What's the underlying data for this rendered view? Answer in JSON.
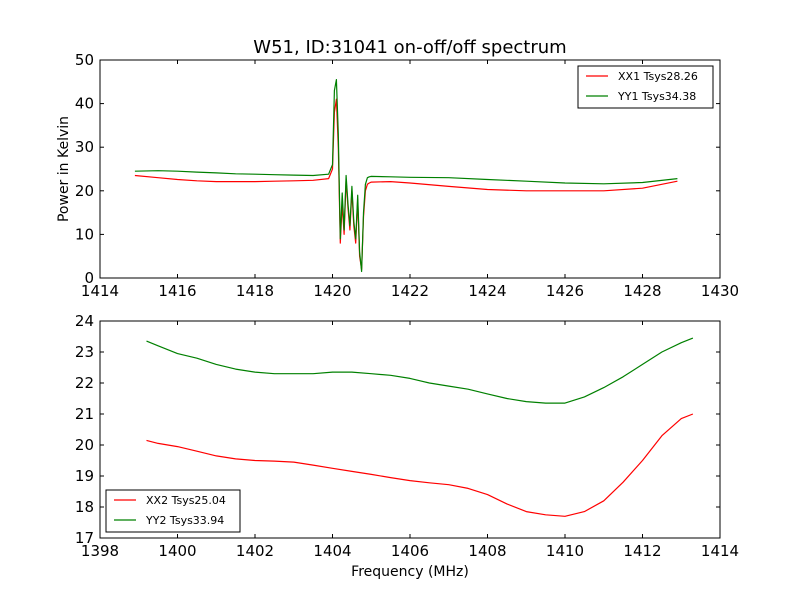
{
  "chart_data": [
    {
      "type": "line",
      "title": "W51, ID:31041 on-off/off spectrum",
      "xlabel": "",
      "ylabel": "Power in Kelvin",
      "xlim": [
        1414,
        1430
      ],
      "ylim": [
        0,
        50
      ],
      "xticks": [
        "1414",
        "1416",
        "1418",
        "1420",
        "1422",
        "1424",
        "1426",
        "1428",
        "1430"
      ],
      "yticks": [
        "0",
        "10",
        "20",
        "30",
        "40",
        "50"
      ],
      "grid": false,
      "legend_position": "top-right",
      "series": [
        {
          "name": "XX1 Tsys28.26",
          "color": "#ff0000",
          "x": [
            1414.9,
            1415.5,
            1416.0,
            1416.5,
            1417.0,
            1417.5,
            1418.0,
            1418.5,
            1419.0,
            1419.5,
            1419.9,
            1420.0,
            1420.05,
            1420.1,
            1420.15,
            1420.2,
            1420.25,
            1420.3,
            1420.35,
            1420.4,
            1420.45,
            1420.5,
            1420.55,
            1420.6,
            1420.65,
            1420.7,
            1420.75,
            1420.8,
            1420.85,
            1420.9,
            1420.95,
            1421.0,
            1421.5,
            1422.0,
            1423.0,
            1424.0,
            1425.0,
            1426.0,
            1427.0,
            1428.0,
            1428.9
          ],
          "y": [
            23.5,
            23.0,
            22.6,
            22.3,
            22.1,
            22.1,
            22.1,
            22.2,
            22.3,
            22.4,
            22.8,
            25.0,
            38.0,
            41.0,
            30.0,
            8.0,
            17.0,
            10.0,
            22.5,
            16.0,
            11.0,
            20.0,
            12.0,
            8.0,
            18.0,
            5.0,
            2.0,
            14.0,
            20.0,
            21.5,
            21.8,
            22.0,
            22.1,
            21.8,
            21.0,
            20.3,
            20.0,
            20.0,
            20.0,
            20.6,
            22.2
          ]
        },
        {
          "name": "YY1 Tsys34.38",
          "color": "#008000",
          "x": [
            1414.9,
            1415.5,
            1416.0,
            1416.5,
            1417.0,
            1417.5,
            1418.0,
            1418.5,
            1419.0,
            1419.5,
            1419.9,
            1420.0,
            1420.05,
            1420.1,
            1420.15,
            1420.2,
            1420.25,
            1420.3,
            1420.35,
            1420.4,
            1420.45,
            1420.5,
            1420.55,
            1420.6,
            1420.65,
            1420.7,
            1420.75,
            1420.8,
            1420.85,
            1420.9,
            1420.95,
            1421.0,
            1421.5,
            1422.0,
            1423.0,
            1424.0,
            1425.0,
            1426.0,
            1427.0,
            1428.0,
            1428.9
          ],
          "y": [
            24.5,
            24.6,
            24.5,
            24.3,
            24.1,
            23.9,
            23.8,
            23.7,
            23.6,
            23.5,
            23.8,
            26.0,
            43.0,
            45.5,
            33.0,
            9.0,
            19.5,
            11.0,
            23.5,
            17.0,
            12.0,
            21.0,
            13.0,
            9.0,
            19.0,
            6.0,
            1.5,
            15.0,
            21.5,
            23.0,
            23.2,
            23.3,
            23.2,
            23.1,
            23.0,
            22.6,
            22.2,
            21.8,
            21.6,
            21.9,
            22.8
          ]
        }
      ]
    },
    {
      "type": "line",
      "title": "",
      "xlabel": "Frequency (MHz)",
      "ylabel": "",
      "xlim": [
        1398,
        1414
      ],
      "ylim": [
        17,
        24
      ],
      "xticks": [
        "1398",
        "1400",
        "1402",
        "1404",
        "1406",
        "1408",
        "1410",
        "1412",
        "1414"
      ],
      "yticks": [
        "17",
        "18",
        "19",
        "20",
        "21",
        "22",
        "23",
        "24"
      ],
      "grid": false,
      "legend_position": "bottom-left",
      "series": [
        {
          "name": "XX2 Tsys25.04",
          "color": "#ff0000",
          "x": [
            1399.2,
            1399.5,
            1400.0,
            1400.5,
            1401.0,
            1401.5,
            1402.0,
            1402.5,
            1403.0,
            1403.5,
            1404.0,
            1404.5,
            1405.0,
            1405.5,
            1406.0,
            1406.5,
            1407.0,
            1407.5,
            1408.0,
            1408.5,
            1409.0,
            1409.5,
            1410.0,
            1410.5,
            1411.0,
            1411.5,
            1412.0,
            1412.5,
            1413.0,
            1413.3
          ],
          "y": [
            20.15,
            20.05,
            19.95,
            19.8,
            19.65,
            19.55,
            19.5,
            19.48,
            19.45,
            19.35,
            19.25,
            19.15,
            19.05,
            18.95,
            18.85,
            18.78,
            18.72,
            18.6,
            18.4,
            18.1,
            17.85,
            17.75,
            17.7,
            17.85,
            18.2,
            18.8,
            19.5,
            20.3,
            20.85,
            21.0
          ]
        },
        {
          "name": "YY2 Tsys33.94",
          "color": "#008000",
          "x": [
            1399.2,
            1399.5,
            1400.0,
            1400.5,
            1401.0,
            1401.5,
            1402.0,
            1402.5,
            1403.0,
            1403.5,
            1404.0,
            1404.5,
            1405.0,
            1405.5,
            1406.0,
            1406.5,
            1407.0,
            1407.5,
            1408.0,
            1408.5,
            1409.0,
            1409.5,
            1410.0,
            1410.5,
            1411.0,
            1411.5,
            1412.0,
            1412.5,
            1413.0,
            1413.3
          ],
          "y": [
            23.35,
            23.2,
            22.95,
            22.8,
            22.6,
            22.45,
            22.35,
            22.3,
            22.3,
            22.3,
            22.35,
            22.35,
            22.3,
            22.25,
            22.15,
            22.0,
            21.9,
            21.8,
            21.65,
            21.5,
            21.4,
            21.35,
            21.35,
            21.55,
            21.85,
            22.2,
            22.6,
            23.0,
            23.3,
            23.45
          ]
        }
      ]
    }
  ]
}
